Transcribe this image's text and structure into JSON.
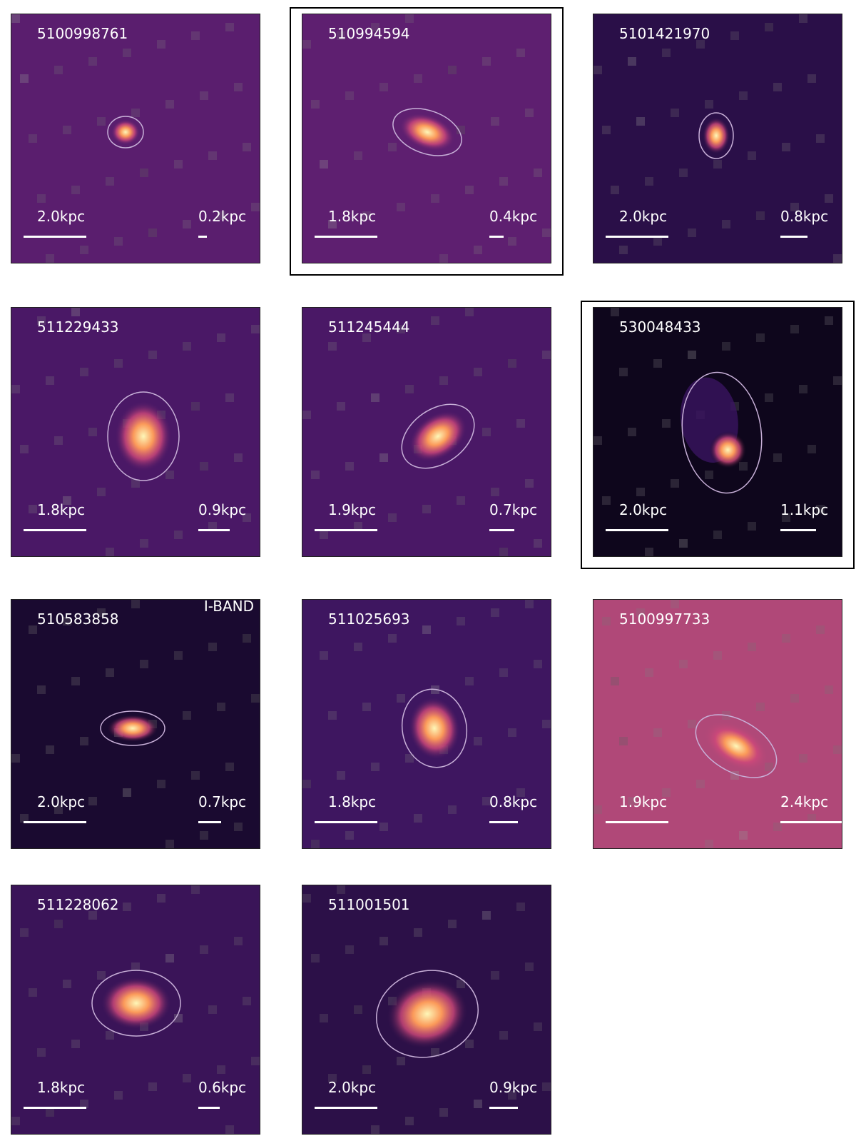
{
  "panels": [
    {
      "id": "5100998761",
      "scale_left": "2.0kpc",
      "scale_right": "0.2kpc"
    },
    {
      "id": "510994594",
      "scale_left": "1.8kpc",
      "scale_right": "0.4kpc",
      "highlighted": true
    },
    {
      "id": "5101421970",
      "scale_left": "2.0kpc",
      "scale_right": "0.8kpc"
    },
    {
      "id": "511229433",
      "scale_left": "1.8kpc",
      "scale_right": "0.9kpc"
    },
    {
      "id": "511245444",
      "scale_left": "1.9kpc",
      "scale_right": "0.7kpc"
    },
    {
      "id": "530048433",
      "scale_left": "2.0kpc",
      "scale_right": "1.1kpc",
      "highlighted": true
    },
    {
      "id": "510583858",
      "scale_left": "2.0kpc",
      "scale_right": "0.7kpc",
      "band": "I-BAND"
    },
    {
      "id": "511025693",
      "scale_left": "1.8kpc",
      "scale_right": "0.8kpc"
    },
    {
      "id": "5100997733",
      "scale_left": "1.9kpc",
      "scale_right": "2.4kpc"
    },
    {
      "id": "511228062",
      "scale_left": "1.8kpc",
      "scale_right": "0.6kpc"
    },
    {
      "id": "511001501",
      "scale_left": "2.0kpc",
      "scale_right": "0.9kpc"
    }
  ]
}
